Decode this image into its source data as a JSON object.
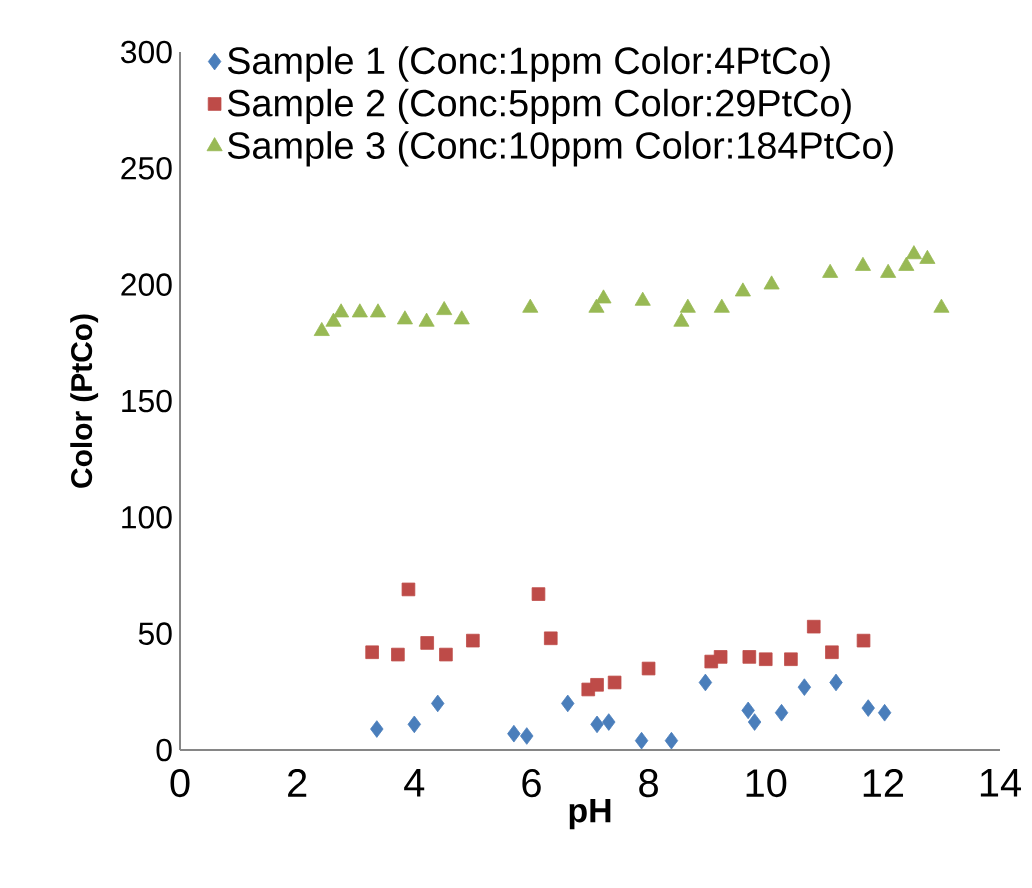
{
  "chart_data": {
    "type": "scatter",
    "xlabel": "pH",
    "ylabel": "Color (PtCo)",
    "xlim": [
      0,
      14
    ],
    "xticks": [
      0,
      2,
      4,
      6,
      8,
      10,
      12,
      14
    ],
    "ylim": [
      0,
      300
    ],
    "yticks": [
      0,
      50,
      100,
      150,
      200,
      250,
      300
    ],
    "grid": false,
    "legend": "top left",
    "series": [
      {
        "name": "Sample 1 (Conc:1ppm Color:4PtCo)",
        "color": "#4a7ebb",
        "marker": "diamond",
        "x": [
          3.36,
          4.0,
          4.4,
          5.7,
          5.92,
          6.62,
          7.12,
          7.32,
          7.88,
          8.39,
          8.97,
          9.7,
          9.81,
          10.27,
          10.66,
          11.2,
          11.75,
          12.03
        ],
        "values": [
          9,
          11,
          20,
          7,
          6,
          20,
          11,
          12,
          4,
          4,
          29,
          17,
          12,
          16,
          27,
          29,
          18,
          16
        ]
      },
      {
        "name": "Sample 2 (Conc:5ppm Color:29PtCo)",
        "color": "#be4b48",
        "marker": "square",
        "x": [
          3.28,
          3.72,
          3.9,
          4.22,
          4.54,
          5.0,
          6.12,
          6.33,
          6.97,
          7.12,
          7.42,
          8.0,
          9.07,
          9.23,
          9.72,
          10.0,
          10.43,
          10.82,
          11.13,
          11.67
        ],
        "values": [
          42,
          41,
          69,
          46,
          41,
          47,
          67,
          48,
          26,
          28,
          29,
          35,
          38,
          40,
          40,
          39,
          39,
          53,
          42,
          47
        ]
      },
      {
        "name": "Sample 3 (Conc:10ppm Color:184PtCo)",
        "color": "#98b954",
        "marker": "triangle",
        "x": [
          2.42,
          2.62,
          2.75,
          3.07,
          3.38,
          3.84,
          4.21,
          4.51,
          4.81,
          5.98,
          7.11,
          7.23,
          7.9,
          8.56,
          8.67,
          9.25,
          9.61,
          10.1,
          11.1,
          11.66,
          12.09,
          12.4,
          12.53,
          12.76,
          13.0
        ],
        "values": [
          180,
          184,
          188,
          188,
          188,
          185,
          184,
          189,
          185,
          190,
          190,
          194,
          193,
          184,
          190,
          190,
          197,
          200,
          205,
          208,
          205,
          208,
          213,
          211,
          190
        ]
      }
    ]
  }
}
